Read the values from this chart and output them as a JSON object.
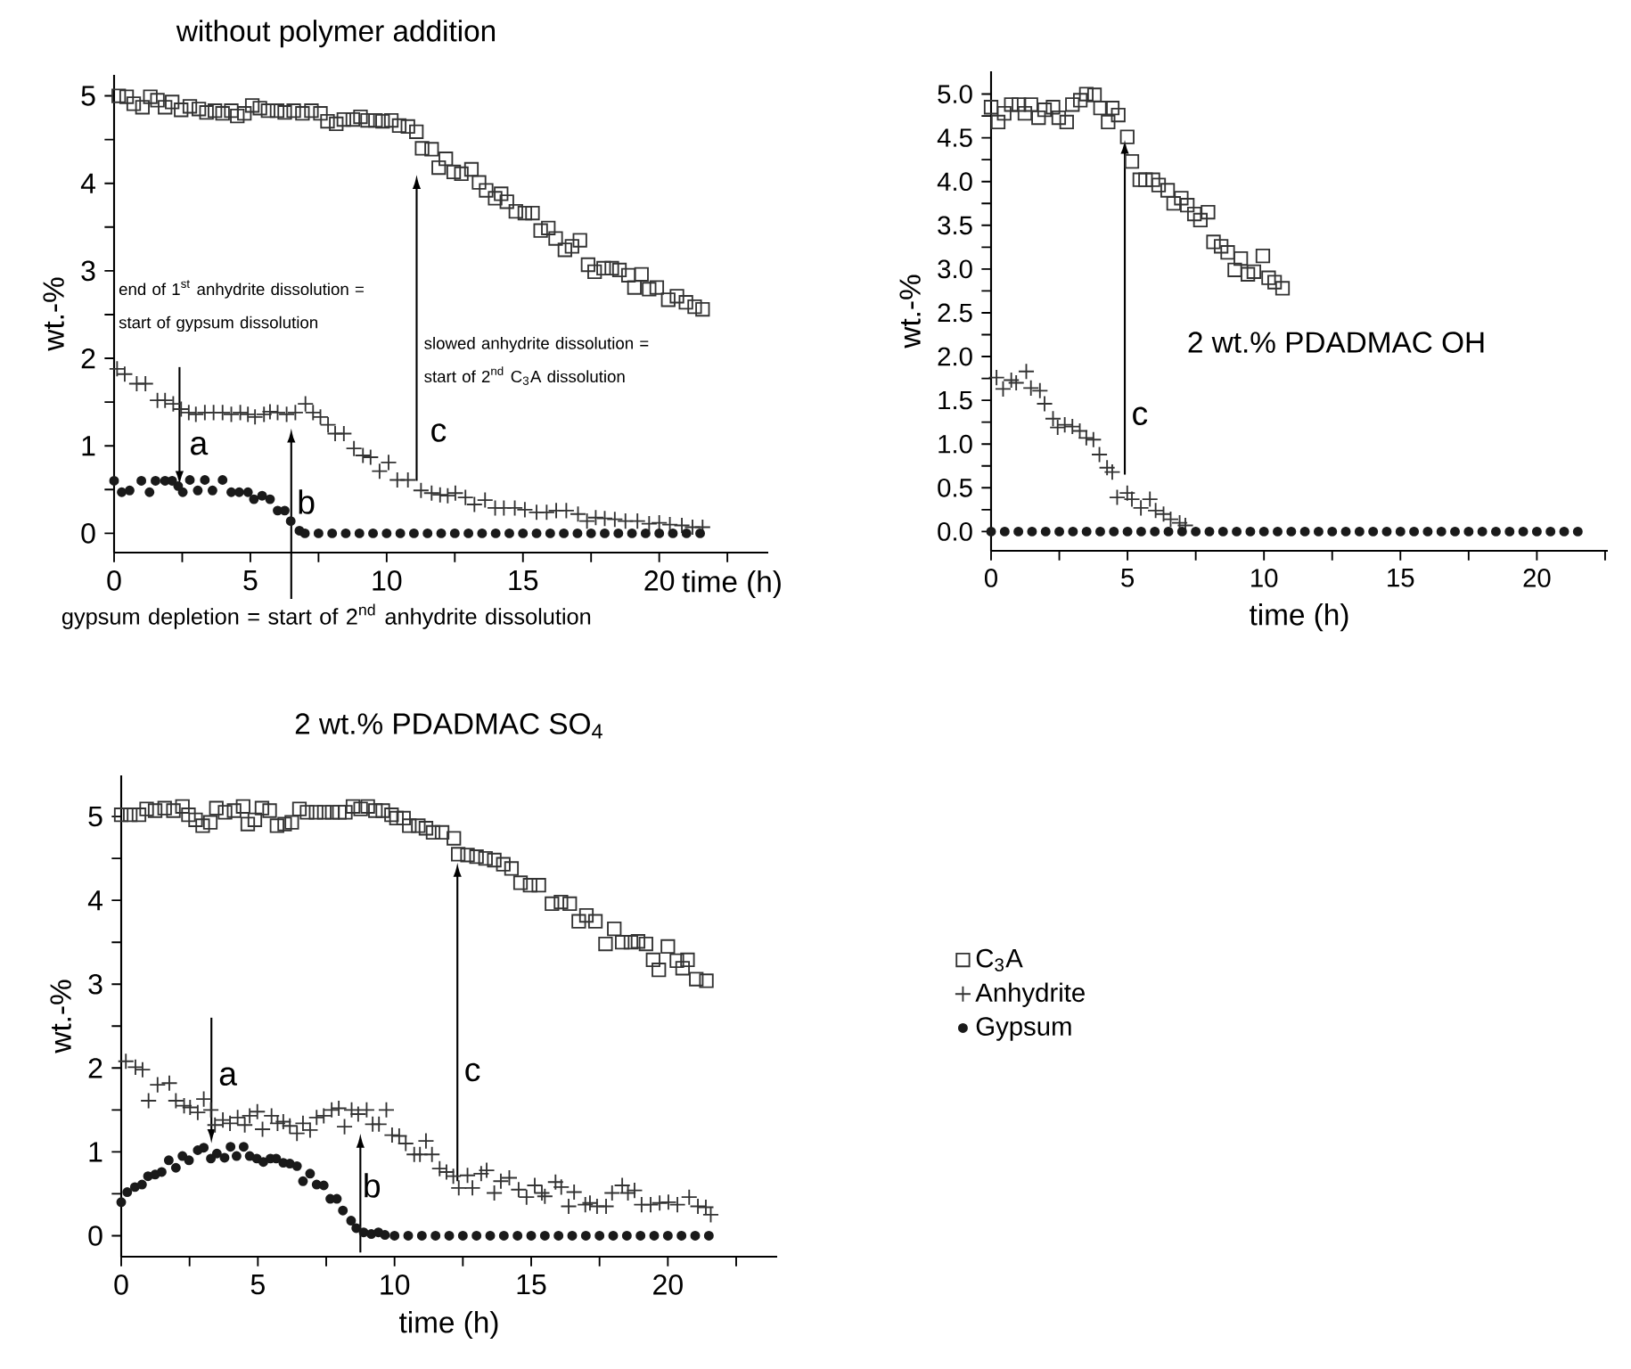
{
  "chart_data": [
    {
      "type": "scatter",
      "title": "without polymer addition",
      "xlabel": "time (h)",
      "ylabel": "wt.-%",
      "xlim": [
        0,
        24
      ],
      "ylim": [
        -0.22,
        5.24
      ],
      "xticks": [
        0,
        {
          "value": 2.5,
          "label": null
        },
        5,
        {
          "value": 7.5,
          "label": null
        },
        10,
        {
          "value": 12.5,
          "label": null
        },
        15,
        {
          "value": 17.5,
          "label": null
        },
        20,
        {
          "value": 22.5,
          "label": null
        }
      ],
      "yticks": [
        0,
        {
          "value": 0.5,
          "label": null
        },
        1,
        {
          "value": 1.5,
          "label": null
        },
        2,
        {
          "value": 2.5,
          "label": null
        },
        3,
        {
          "value": 3.5,
          "label": null
        },
        4,
        {
          "value": 4.5,
          "label": null
        },
        5
      ],
      "series": [
        {
          "marker": "square",
          "color": "#333333",
          "x": [
            0.17,
            0.46,
            0.72,
            1.04,
            1.33,
            1.59,
            1.87,
            2.13,
            2.46,
            2.78,
            3.11,
            3.39,
            3.7,
            3.98,
            4.3,
            4.52,
            4.78,
            5.07,
            5.35,
            5.65,
            5.98,
            6.26,
            6.59,
            6.91,
            7.24,
            7.57,
            7.83,
            8.15,
            8.43,
            8.76,
            9.04,
            9.3,
            9.59,
            9.85,
            10.17,
            10.46,
            10.78,
            11.09,
            11.3,
            11.65,
            11.91,
            12.17,
            12.46,
            12.74,
            13.11,
            13.39,
            13.65,
            13.98,
            14.2,
            14.41,
            14.74,
            15.07,
            15.35,
            15.65,
            15.93,
            16.2,
            16.54,
            16.8,
            17.09,
            17.39,
            17.63,
            17.96,
            18.26,
            18.54,
            18.87,
            19.09,
            19.35,
            19.63,
            19.91,
            20.33,
            20.65,
            20.98,
            21.3,
            21.59
          ],
          "values": [
            5.0,
            4.99,
            4.91,
            4.87,
            4.99,
            4.95,
            4.87,
            4.93,
            4.84,
            4.88,
            4.85,
            4.81,
            4.83,
            4.8,
            4.83,
            4.77,
            4.8,
            4.89,
            4.86,
            4.83,
            4.83,
            4.81,
            4.83,
            4.8,
            4.83,
            4.8,
            4.71,
            4.68,
            4.73,
            4.73,
            4.76,
            4.72,
            4.72,
            4.71,
            4.72,
            4.66,
            4.65,
            4.59,
            4.4,
            4.39,
            4.18,
            4.28,
            4.13,
            4.11,
            4.16,
            4.01,
            3.92,
            3.83,
            3.88,
            3.79,
            3.68,
            3.66,
            3.66,
            3.46,
            3.49,
            3.37,
            3.24,
            3.28,
            3.35,
            3.07,
            2.99,
            3.03,
            3.03,
            3.01,
            2.95,
            2.81,
            2.96,
            2.79,
            2.81,
            2.67,
            2.71,
            2.64,
            2.59,
            2.56
          ]
        },
        {
          "marker": "cross",
          "color": "#333333",
          "x": [
            0.11,
            0.39,
            0.83,
            1.15,
            1.59,
            1.87,
            2.17,
            2.46,
            2.74,
            3.0,
            3.33,
            3.65,
            3.98,
            4.3,
            4.63,
            4.91,
            5.17,
            5.5,
            5.72,
            6.0,
            6.33,
            6.65,
            7.02,
            7.3,
            7.57,
            7.85,
            8.11,
            8.43,
            8.8,
            9.13,
            9.41,
            9.74,
            10.07,
            10.39,
            10.78,
            11.26,
            11.65,
            11.96,
            12.24,
            12.52,
            12.89,
            13.22,
            13.61,
            13.98,
            14.3,
            14.7,
            15.07,
            15.5,
            15.87,
            16.22,
            16.59,
            17.02,
            17.35,
            17.67,
            18.0,
            18.37,
            18.76,
            19.2,
            19.63,
            20.0,
            20.39,
            20.83,
            21.22,
            21.59
          ],
          "values": [
            1.88,
            1.82,
            1.71,
            1.71,
            1.52,
            1.52,
            1.48,
            1.42,
            1.38,
            1.36,
            1.38,
            1.38,
            1.38,
            1.36,
            1.38,
            1.36,
            1.33,
            1.36,
            1.39,
            1.38,
            1.36,
            1.38,
            1.48,
            1.38,
            1.33,
            1.24,
            1.14,
            1.14,
            0.97,
            0.89,
            0.87,
            0.71,
            0.81,
            0.61,
            0.61,
            0.49,
            0.46,
            0.44,
            0.43,
            0.46,
            0.41,
            0.33,
            0.38,
            0.29,
            0.29,
            0.29,
            0.27,
            0.24,
            0.24,
            0.26,
            0.26,
            0.22,
            0.14,
            0.18,
            0.17,
            0.16,
            0.14,
            0.14,
            0.11,
            0.12,
            0.1,
            0.09,
            0.07,
            0.07
          ]
        },
        {
          "marker": "circle",
          "color": "#1a1a1a",
          "x": [
            0,
            0.28,
            0.57,
            1.0,
            1.3,
            1.52,
            1.87,
            2.13,
            2.35,
            2.52,
            2.78,
            3.07,
            3.33,
            3.61,
            3.98,
            4.3,
            4.59,
            4.91,
            5.13,
            5.43,
            5.72,
            6.0,
            6.26,
            6.48,
            6.8,
            7.0,
            7.5,
            8.0,
            8.5,
            9.0,
            9.5,
            10.0,
            10.5,
            11.0,
            11.5,
            12.0,
            12.5,
            13.0,
            13.5,
            14.0,
            14.5,
            15.0,
            15.5,
            16.0,
            16.5,
            17.0,
            17.5,
            18.0,
            18.5,
            19.0,
            19.5,
            20.0,
            20.5,
            21.0,
            21.5
          ],
          "values": [
            0.6,
            0.47,
            0.49,
            0.6,
            0.47,
            0.6,
            0.6,
            0.6,
            0.54,
            0.47,
            0.61,
            0.49,
            0.61,
            0.49,
            0.61,
            0.47,
            0.47,
            0.47,
            0.39,
            0.43,
            0.39,
            0.26,
            0.26,
            0.14,
            0.03,
            0,
            0,
            0,
            0,
            0,
            0,
            0,
            0,
            0,
            0,
            0,
            0,
            0,
            0,
            0,
            0,
            0,
            0,
            0,
            0,
            0,
            0,
            0,
            0,
            0,
            0,
            0,
            0,
            0,
            0
          ]
        }
      ],
      "annotations": [
        "end of 1$^{st}$ anhydrite dissolution = start of gypsum dissolution",
        "a",
        "b",
        "c",
        "slowed anhydrite dissolution = start of 2$^{nd}$ C$_{3}$A dissolution",
        "gypsum depletion = start of 2$^{nd}$ anhydrite dissolution"
      ]
    },
    {
      "type": "scatter",
      "title": "2 wt.% PDADMAC OH",
      "xlabel": "time (h)",
      "ylabel": "wt.-%",
      "xlim": [
        0,
        22.6
      ],
      "ylim": [
        -0.22,
        5.26
      ],
      "xticks": [
        0,
        {
          "value": 2.5,
          "label": null
        },
        5,
        {
          "value": 7.5,
          "label": null
        },
        10,
        {
          "value": 12.5,
          "label": null
        },
        15,
        {
          "value": 17.5,
          "label": null
        },
        20,
        {
          "value": 22.5,
          "label": null
        }
      ],
      "yticks": [
        {
          "value": 0,
          "label": "0.0"
        },
        {
          "value": 0.25,
          "label": null
        },
        {
          "value": 0.5,
          "label": "0.5"
        },
        {
          "value": 0.75,
          "label": null
        },
        {
          "value": 1,
          "label": "1.0"
        },
        {
          "value": 1.25,
          "label": null
        },
        {
          "value": 1.5,
          "label": "1.5"
        },
        {
          "value": 1.75,
          "label": null
        },
        {
          "value": 2,
          "label": "2.0"
        },
        {
          "value": 2.25,
          "label": null
        },
        {
          "value": 2.5,
          "label": "2.5"
        },
        {
          "value": 2.75,
          "label": null
        },
        {
          "value": 3,
          "label": "3.0"
        },
        {
          "value": 3.25,
          "label": null
        },
        {
          "value": 3.5,
          "label": "3.5"
        },
        {
          "value": 3.75,
          "label": null
        },
        {
          "value": 4,
          "label": "4.0"
        },
        {
          "value": 4.25,
          "label": null
        },
        {
          "value": 4.5,
          "label": "4.5"
        },
        {
          "value": 4.75,
          "label": null
        },
        {
          "value": 5,
          "label": "5.0"
        }
      ],
      "series": [
        {
          "marker": "square",
          "color": "#333333",
          "x": [
            0,
            0.26,
            0.48,
            0.74,
            1.02,
            1.24,
            1.46,
            1.74,
            1.96,
            2.27,
            2.48,
            2.77,
            2.98,
            3.27,
            3.49,
            3.79,
            4.01,
            4.29,
            4.44,
            4.66,
            4.99,
            5.16,
            5.45,
            5.66,
            5.93,
            6.14,
            6.47,
            6.69,
            6.97,
            7.19,
            7.45,
            7.67,
            7.95,
            8.15,
            8.43,
            8.67,
            8.93,
            9.15,
            9.41,
            9.63,
            9.96,
            10.17,
            10.39,
            10.68
          ],
          "values": [
            4.85,
            4.68,
            4.78,
            4.88,
            4.88,
            4.78,
            4.88,
            4.73,
            4.82,
            4.85,
            4.73,
            4.68,
            4.88,
            4.93,
            5.0,
            4.99,
            4.84,
            4.68,
            4.84,
            4.76,
            4.51,
            4.23,
            4.02,
            4.02,
            4.02,
            3.96,
            3.9,
            3.75,
            3.81,
            3.73,
            3.63,
            3.56,
            3.65,
            3.31,
            3.26,
            3.19,
            2.99,
            3.12,
            2.94,
            2.97,
            3.15,
            2.9,
            2.85,
            2.78
          ]
        },
        {
          "marker": "cross",
          "color": "#333333",
          "x": [
            0.2,
            0.44,
            0.74,
            0.92,
            1.29,
            1.46,
            1.79,
            1.96,
            2.27,
            2.44,
            2.7,
            2.98,
            3.25,
            3.49,
            3.75,
            3.97,
            4.25,
            4.44,
            4.62,
            4.99,
            5.16,
            5.49,
            5.82,
            6.03,
            6.32,
            6.58,
            6.91,
            7.12
          ],
          "values": [
            1.76,
            1.63,
            1.73,
            1.7,
            1.83,
            1.64,
            1.61,
            1.46,
            1.29,
            1.19,
            1.22,
            1.2,
            1.15,
            1.07,
            1.05,
            0.88,
            0.73,
            0.68,
            0.39,
            0.44,
            0.37,
            0.27,
            0.37,
            0.24,
            0.2,
            0.14,
            0.1,
            0.07
          ]
        },
        {
          "marker": "circle",
          "color": "#1a1a1a",
          "x": [
            0,
            0.5,
            1.0,
            1.5,
            2.0,
            2.5,
            3.0,
            3.5,
            4.0,
            4.5,
            5.0,
            5.5,
            6.0,
            6.5,
            7.0,
            7.5,
            8.0,
            8.5,
            9.0,
            9.5,
            10.0,
            10.5,
            11.0,
            11.5,
            12.0,
            12.5,
            13.0,
            13.5,
            14.0,
            14.5,
            15.0,
            15.5,
            16.0,
            16.5,
            17.0,
            17.5,
            18.0,
            18.5,
            19.0,
            19.5,
            20.0,
            20.5,
            21.0,
            21.5
          ],
          "values": [
            0,
            0,
            0,
            0,
            0,
            0,
            0,
            0,
            0,
            0,
            0,
            0,
            0,
            0,
            0,
            0,
            0,
            0,
            0,
            0,
            0,
            0,
            0,
            0,
            0,
            0,
            0,
            0,
            0,
            0,
            0,
            0,
            0,
            0,
            0,
            0,
            0,
            0,
            0,
            0,
            0,
            0,
            0,
            0
          ]
        }
      ],
      "annotations": [
        "c"
      ]
    },
    {
      "type": "scatter",
      "title": "2 wt.% PDADMAC SO$_{4}$",
      "xlabel": "time (h)",
      "ylabel": "wt.-%",
      "xlim": [
        0,
        24
      ],
      "ylim": [
        -0.25,
        5.49
      ],
      "legend": "right",
      "xticks": [
        0,
        {
          "value": 2.5,
          "label": null
        },
        5,
        {
          "value": 7.5,
          "label": null
        },
        10,
        {
          "value": 12.5,
          "label": null
        },
        15,
        {
          "value": 17.5,
          "label": null
        },
        20,
        {
          "value": 22.5,
          "label": null
        }
      ],
      "yticks": [
        0,
        {
          "value": 0.5,
          "label": null
        },
        1,
        {
          "value": 1.5,
          "label": null
        },
        2,
        {
          "value": 2.5,
          "label": null
        },
        3,
        {
          "value": 3.5,
          "label": null
        },
        4,
        {
          "value": 4.5,
          "label": null
        },
        5
      ],
      "series": [
        {
          "name": "C$_{3}$A",
          "marker": "square",
          "color": "#333333",
          "x": [
            0,
            0.33,
            0.65,
            0.93,
            1.24,
            1.59,
            1.91,
            2.24,
            2.46,
            2.72,
            2.98,
            3.26,
            3.48,
            3.8,
            4.13,
            4.46,
            4.63,
            4.89,
            5.15,
            5.43,
            5.7,
            5.98,
            6.24,
            6.52,
            6.8,
            7.13,
            7.43,
            7.72,
            7.98,
            8.2,
            8.48,
            8.76,
            9.02,
            9.3,
            9.57,
            9.89,
            10.07,
            10.33,
            10.54,
            10.87,
            11.15,
            11.41,
            11.74,
            12.17,
            12.33,
            12.67,
            13.0,
            13.33,
            13.65,
            13.98,
            14.28,
            14.61,
            14.96,
            15.28,
            15.76,
            16.09,
            16.41,
            16.74,
            17.02,
            17.35,
            17.72,
            18.04,
            18.33,
            18.65,
            18.91,
            19.2,
            19.46,
            19.67,
            20.0,
            20.33,
            20.54,
            20.72,
            21.04,
            21.41
          ],
          "values": [
            5.02,
            5.02,
            5.02,
            5.09,
            5.07,
            5.1,
            5.07,
            5.12,
            5.02,
            4.96,
            4.89,
            4.93,
            5.1,
            5.05,
            5.07,
            5.12,
            4.91,
            4.96,
            5.1,
            5.07,
            4.89,
            4.91,
            4.93,
            5.09,
            5.05,
            5.05,
            5.05,
            5.05,
            5.05,
            5.05,
            5.12,
            5.09,
            5.12,
            5.07,
            5.07,
            5.02,
            4.98,
            4.98,
            4.89,
            4.89,
            4.86,
            4.81,
            4.81,
            4.74,
            4.55,
            4.54,
            4.52,
            4.5,
            4.48,
            4.43,
            4.38,
            4.21,
            4.18,
            4.18,
            3.96,
            3.98,
            3.96,
            3.75,
            3.82,
            3.75,
            3.48,
            3.66,
            3.5,
            3.5,
            3.51,
            3.48,
            3.29,
            3.17,
            3.45,
            3.28,
            3.19,
            3.29,
            3.06,
            3.04
          ]
        },
        {
          "name": "Anhydrite",
          "marker": "cross",
          "color": "#333333",
          "x": [
            0.17,
            0.52,
            0.78,
            1.0,
            1.33,
            1.76,
            2.0,
            2.3,
            2.52,
            2.8,
            3.02,
            3.28,
            3.43,
            3.72,
            3.98,
            4.26,
            4.52,
            4.7,
            4.98,
            5.17,
            5.5,
            5.72,
            5.93,
            6.17,
            6.43,
            6.65,
            6.91,
            7.15,
            7.41,
            7.7,
            7.96,
            8.17,
            8.43,
            8.67,
            8.98,
            9.2,
            9.43,
            9.7,
            9.91,
            10.17,
            10.41,
            10.72,
            10.93,
            11.15,
            11.37,
            11.65,
            11.9,
            12.15,
            12.35,
            12.67,
            12.85,
            13.17,
            13.37,
            13.65,
            13.89,
            14.2,
            14.54,
            14.83,
            15.13,
            15.39,
            15.5,
            15.89,
            16.1,
            16.37,
            16.57,
            16.98,
            17.15,
            17.41,
            17.74,
            17.96,
            18.33,
            18.54,
            18.78,
            19.04,
            19.37,
            19.7,
            20.02,
            20.35,
            20.78,
            21.1,
            21.39,
            21.57
          ],
          "values": [
            2.08,
            2.01,
            1.98,
            1.61,
            1.8,
            1.82,
            1.61,
            1.55,
            1.53,
            1.47,
            1.63,
            1.5,
            1.32,
            1.38,
            1.34,
            1.41,
            1.32,
            1.43,
            1.48,
            1.27,
            1.43,
            1.34,
            1.36,
            1.31,
            1.22,
            1.34,
            1.26,
            1.41,
            1.43,
            1.5,
            1.52,
            1.3,
            1.5,
            1.45,
            1.5,
            1.33,
            1.33,
            1.5,
            1.2,
            1.19,
            1.1,
            0.97,
            0.97,
            1.13,
            0.97,
            0.8,
            0.76,
            0.71,
            0.57,
            0.72,
            0.57,
            0.74,
            0.78,
            0.51,
            0.65,
            0.69,
            0.55,
            0.46,
            0.6,
            0.51,
            0.47,
            0.64,
            0.58,
            0.35,
            0.52,
            0.37,
            0.39,
            0.35,
            0.35,
            0.51,
            0.6,
            0.51,
            0.54,
            0.37,
            0.37,
            0.39,
            0.4,
            0.37,
            0.46,
            0.35,
            0.34,
            0.25
          ]
        },
        {
          "name": "Gypsum",
          "marker": "circle",
          "color": "#1a1a1a",
          "x": [
            0,
            0.22,
            0.5,
            0.76,
            0.98,
            1.24,
            1.48,
            1.74,
            2.0,
            2.24,
            2.48,
            2.8,
            3.02,
            3.28,
            3.5,
            3.78,
            4.0,
            4.22,
            4.48,
            4.7,
            4.96,
            5.2,
            5.46,
            5.67,
            5.93,
            6.17,
            6.43,
            6.65,
            6.91,
            7.15,
            7.41,
            7.65,
            7.89,
            8.11,
            8.41,
            8.6,
            8.87,
            9.15,
            9.41,
            9.65,
            10.0,
            10.5,
            11.0,
            11.5,
            12.0,
            12.5,
            13.0,
            13.5,
            14.0,
            14.5,
            15.0,
            15.5,
            16.0,
            16.5,
            17.0,
            17.5,
            18.0,
            18.5,
            19.0,
            19.5,
            20.0,
            20.5,
            21.0,
            21.5
          ],
          "values": [
            0.4,
            0.52,
            0.58,
            0.61,
            0.71,
            0.73,
            0.76,
            0.9,
            0.81,
            0.95,
            0.9,
            1.02,
            1.05,
            0.92,
            0.98,
            0.93,
            1.06,
            0.95,
            1.06,
            0.95,
            0.92,
            0.88,
            0.92,
            0.92,
            0.87,
            0.86,
            0.83,
            0.65,
            0.74,
            0.61,
            0.6,
            0.44,
            0.44,
            0.3,
            0.18,
            0.09,
            0.04,
            0.02,
            0.04,
            0.01,
            0,
            0,
            0,
            0,
            0,
            0,
            0,
            0,
            0,
            0,
            0,
            0,
            0,
            0,
            0,
            0,
            0,
            0,
            0,
            0,
            0,
            0,
            0,
            0
          ]
        }
      ],
      "annotations": [
        "a",
        "b",
        "c"
      ]
    }
  ]
}
